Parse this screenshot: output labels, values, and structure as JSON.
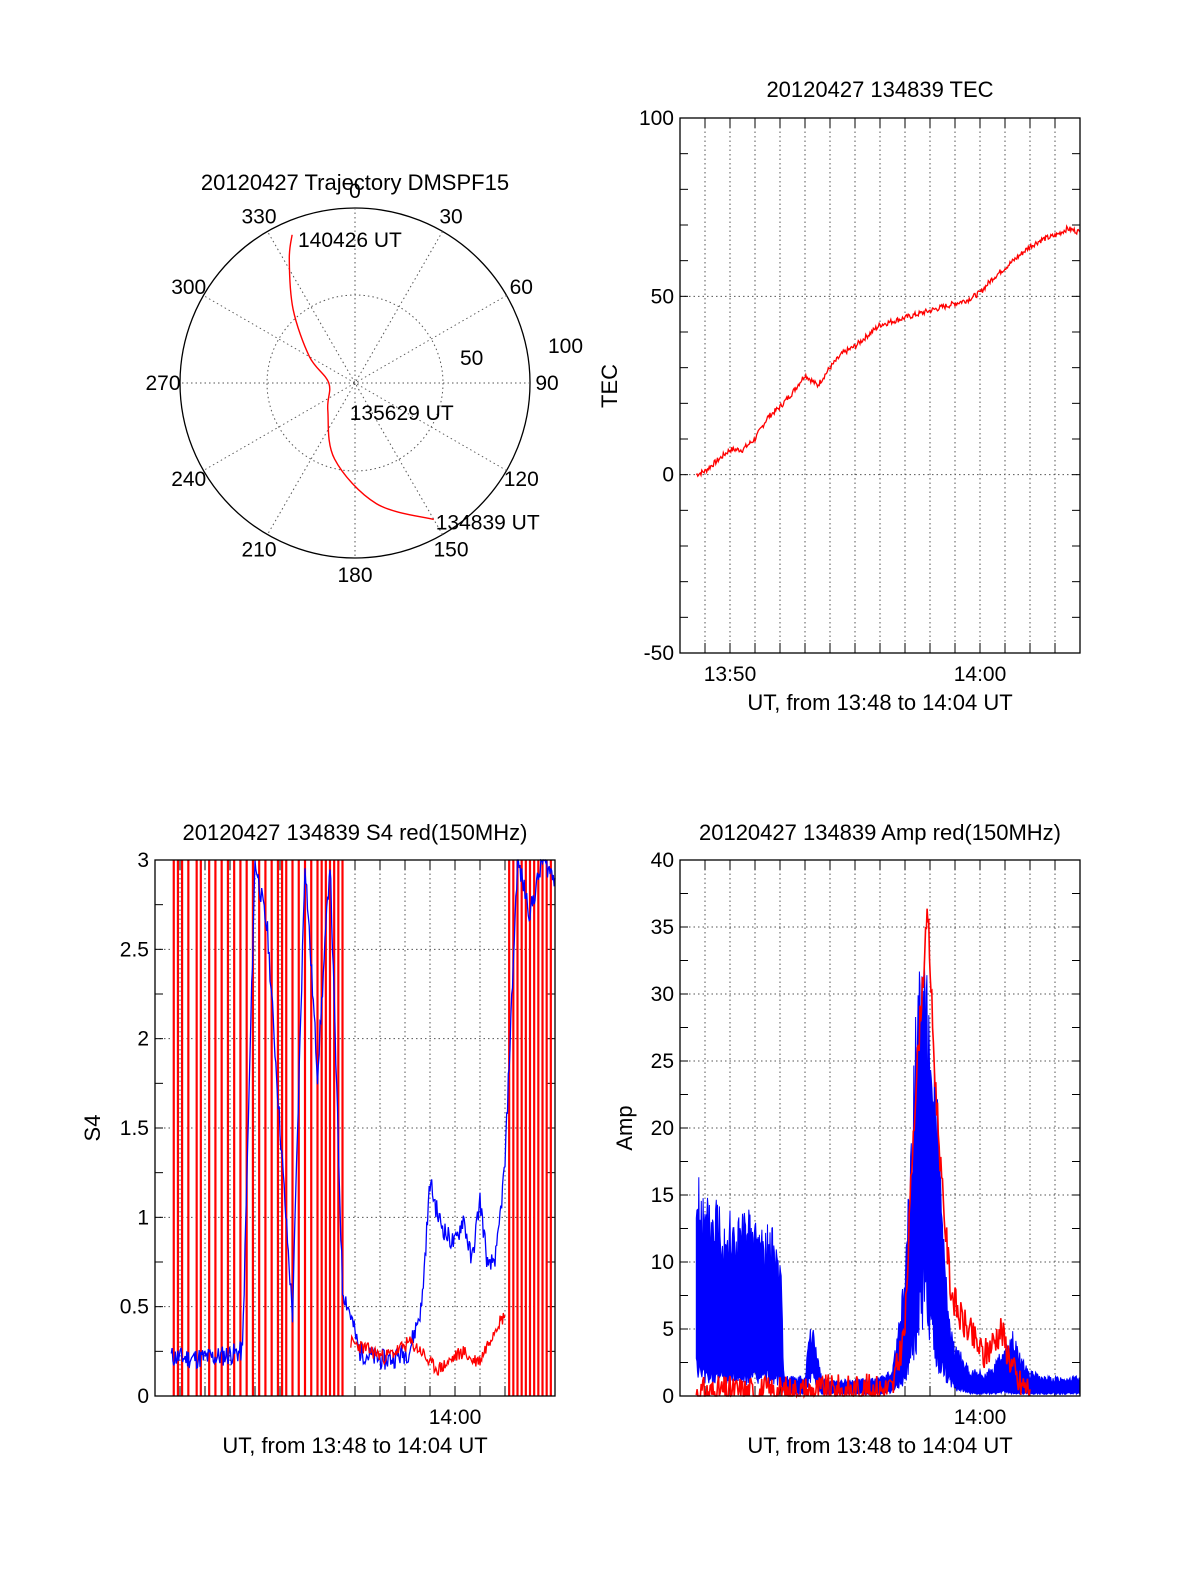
{
  "chart_data": [
    {
      "type": "polar",
      "title": "20120427 Trajectory DMSPF15",
      "angle_labels": [
        "0",
        "30",
        "60",
        "90",
        "120",
        "150",
        "180",
        "210",
        "240",
        "270",
        "300",
        "330"
      ],
      "radial_labels": [
        "50",
        "100"
      ],
      "rlim": [
        0,
        100
      ],
      "grid": true,
      "series": [
        {
          "color": "#ff0000",
          "points_az_zenith": [
            [
              150,
              90
            ],
            [
              170,
              70
            ],
            [
              195,
              45
            ],
            [
              225,
              22
            ],
            [
              270,
              15
            ],
            [
              300,
              30
            ],
            [
              320,
              55
            ],
            [
              332,
              80
            ],
            [
              337,
              92
            ]
          ]
        }
      ],
      "annotations": [
        {
          "text": "140426 UT",
          "az": 338,
          "zenith": 90
        },
        {
          "text": "135629 UT",
          "az": 195,
          "zenith": 16
        },
        {
          "text": "134839 UT",
          "az": 150,
          "zenith": 90
        }
      ]
    },
    {
      "type": "line",
      "title": "20120427 134839 TEC",
      "xlabel": "UT, from 13:48 to 14:04 UT",
      "ylabel": "TEC",
      "xlim": [
        "13:48:00",
        "14:04:00"
      ],
      "ylim": [
        -50,
        100
      ],
      "yticks": [
        "-50",
        "0",
        "50",
        "100"
      ],
      "xticks": [
        "13:50",
        "14:00"
      ],
      "grid": true,
      "series": [
        {
          "color": "#ff0000",
          "x": [
            "13:48:39",
            "13:49:00",
            "13:49:30",
            "13:50:00",
            "13:50:30",
            "13:51:00",
            "13:51:30",
            "13:52:00",
            "13:52:30",
            "13:53:00",
            "13:53:30",
            "13:54:00",
            "13:54:30",
            "13:55:00",
            "13:55:30",
            "13:56:00",
            "13:56:30",
            "13:57:00",
            "13:57:30",
            "13:58:00",
            "13:58:30",
            "13:59:00",
            "13:59:30",
            "14:00:00",
            "14:00:30",
            "14:01:00",
            "14:01:30",
            "14:02:00",
            "14:02:30",
            "14:03:00",
            "14:03:30",
            "14:04:00"
          ],
          "y": [
            0,
            1,
            4,
            7,
            7,
            10,
            16,
            19,
            23,
            28,
            25,
            30,
            34,
            36,
            39,
            42,
            43,
            44,
            45,
            46,
            47,
            48,
            49,
            51,
            55,
            58,
            61,
            64,
            66,
            67,
            69,
            68
          ]
        }
      ]
    },
    {
      "type": "line",
      "title": "20120427 134839 S4 red(150MHz)",
      "xlabel": "UT, from 13:48 to 14:04 UT",
      "ylabel": "S4",
      "xlim": [
        "13:48:00",
        "14:04:00"
      ],
      "ylim": [
        0,
        3
      ],
      "yticks": [
        "0",
        "0.5",
        "1",
        "1.5",
        "2",
        "2.5",
        "3"
      ],
      "xticks": [
        "14:00"
      ],
      "grid": true,
      "series": [
        {
          "color": "#0000ff",
          "x": [
            "13:48:39",
            "13:49:30",
            "13:50:30",
            "13:51:15",
            "13:51:30",
            "13:52:00",
            "13:52:30",
            "13:53:00",
            "13:53:30",
            "13:54:00",
            "13:54:30",
            "13:55:00",
            "13:55:30",
            "13:55:50",
            "13:56:10",
            "13:56:40",
            "13:57:10",
            "13:57:40",
            "13:58:10",
            "13:58:40",
            "13:59:00",
            "13:59:20",
            "13:59:40",
            "14:00:00",
            "14:00:20",
            "14:00:40",
            "14:01:00",
            "14:01:20",
            "14:01:40",
            "14:02:00",
            "14:02:30",
            "14:03:00",
            "14:03:30",
            "14:04:00"
          ],
          "y": [
            0.22,
            0.21,
            0.22,
            0.24,
            0.25,
            3.0,
            2.6,
            1.5,
            0.45,
            3.0,
            1.8,
            3.0,
            0.6,
            0.45,
            0.25,
            0.22,
            0.2,
            0.22,
            0.25,
            0.5,
            1.2,
            1.0,
            0.9,
            0.85,
            1.0,
            0.75,
            1.1,
            0.7,
            0.8,
            1.3,
            3.0,
            2.7,
            3.0,
            2.9
          ]
        },
        {
          "color": "#ff0000",
          "x": [
            "13:55:50",
            "13:56:10",
            "13:56:40",
            "13:57:10",
            "13:57:40",
            "13:58:10",
            "13:58:40",
            "13:59:00",
            "13:59:20",
            "13:59:40",
            "14:00:00",
            "14:00:20",
            "14:00:40",
            "14:01:00",
            "14:01:20",
            "14:01:40",
            "14:02:00"
          ],
          "y": [
            0.3,
            0.28,
            0.25,
            0.22,
            0.25,
            0.3,
            0.25,
            0.18,
            0.15,
            0.18,
            0.22,
            0.25,
            0.2,
            0.2,
            0.3,
            0.4,
            0.45
          ],
          "spikes_to_top_x": [
            "13:48:45",
            "13:48:55",
            "13:49:05",
            "13:49:20",
            "13:49:40",
            "13:49:50",
            "13:50:10",
            "13:50:25",
            "13:50:40",
            "13:50:55",
            "13:51:10",
            "13:51:25",
            "13:51:40",
            "13:51:55",
            "13:52:10",
            "13:52:25",
            "13:52:40",
            "13:52:55",
            "13:53:05",
            "13:53:15",
            "13:53:30",
            "13:53:45",
            "13:54:00",
            "13:54:15",
            "13:54:30",
            "13:54:40",
            "13:54:50",
            "13:55:00",
            "13:55:10",
            "13:55:20",
            "13:55:30",
            "14:02:10",
            "14:02:20",
            "14:02:30",
            "14:02:40",
            "14:02:50",
            "14:03:00",
            "14:03:10",
            "14:03:20",
            "14:03:30",
            "14:03:40",
            "14:03:50"
          ]
        }
      ]
    },
    {
      "type": "line",
      "title": "20120427 134839 Amp red(150MHz)",
      "xlabel": "UT, from 13:48 to 14:04 UT",
      "ylabel": "Amp",
      "xlim": [
        "13:48:00",
        "14:04:00"
      ],
      "ylim": [
        0,
        40
      ],
      "yticks": [
        "0",
        "5",
        "10",
        "15",
        "20",
        "25",
        "30",
        "35",
        "40"
      ],
      "xticks": [
        "14:00"
      ],
      "grid": true,
      "series": [
        {
          "color": "#0000ff",
          "band_x": [
            "13:48:39",
            "13:49:00",
            "13:49:30",
            "13:50:00",
            "13:50:30",
            "13:51:00",
            "13:51:30",
            "13:52:00",
            "13:52:10",
            "13:52:30",
            "13:53:00",
            "13:53:10",
            "13:53:20",
            "13:53:40",
            "13:54:00",
            "13:54:30",
            "13:55:00",
            "13:55:30",
            "13:56:00",
            "13:56:30",
            "13:57:00",
            "13:57:15",
            "13:57:30",
            "13:57:45",
            "13:58:00",
            "13:58:15",
            "13:58:30",
            "13:58:45",
            "13:59:00",
            "13:59:20",
            "13:59:40",
            "14:00:00",
            "14:00:20",
            "14:00:40",
            "14:01:00",
            "14:01:20",
            "14:01:40",
            "14:02:00",
            "14:02:30",
            "14:03:00",
            "14:03:30",
            "14:04:00"
          ],
          "band_lo": [
            3,
            2,
            2,
            2,
            2,
            2,
            2,
            2,
            0.3,
            0.3,
            0.3,
            2,
            2,
            0.3,
            0.3,
            0.3,
            0.3,
            0.3,
            0.3,
            0.5,
            2,
            5,
            8,
            12,
            10,
            5,
            3,
            2,
            1,
            0.5,
            0.3,
            0.3,
            0.3,
            0.3,
            0.5,
            0.3,
            0.3,
            0.3,
            0.3,
            0.3,
            0.3,
            0.3
          ],
          "band_hi": [
            17,
            15,
            16,
            14,
            14,
            14,
            13,
            12,
            1.5,
            1.5,
            1.5,
            5,
            5,
            1.5,
            1.3,
            1.3,
            1.3,
            1.3,
            1.5,
            2,
            10,
            20,
            33,
            34,
            30,
            25,
            14,
            6,
            4,
            3,
            2,
            2,
            2,
            3,
            4,
            5,
            3,
            2,
            1.5,
            1.5,
            1.5,
            1.5
          ]
        },
        {
          "color": "#ff0000",
          "x": [
            "13:48:39",
            "13:50:00",
            "13:51:00",
            "13:52:00",
            "13:56:30",
            "13:57:00",
            "13:57:20",
            "13:57:40",
            "13:57:55",
            "13:58:10",
            "13:58:30",
            "13:58:50",
            "13:59:10",
            "13:59:30",
            "13:59:50",
            "14:00:10",
            "14:00:30",
            "14:00:50",
            "14:01:10",
            "14:01:30",
            "14:02:00"
          ],
          "y": [
            0.2,
            0.3,
            0.3,
            0.3,
            0.5,
            5,
            20,
            30,
            36,
            25,
            15,
            8,
            6,
            5,
            4,
            3,
            4,
            5,
            3,
            1,
            0.5
          ]
        }
      ]
    }
  ]
}
